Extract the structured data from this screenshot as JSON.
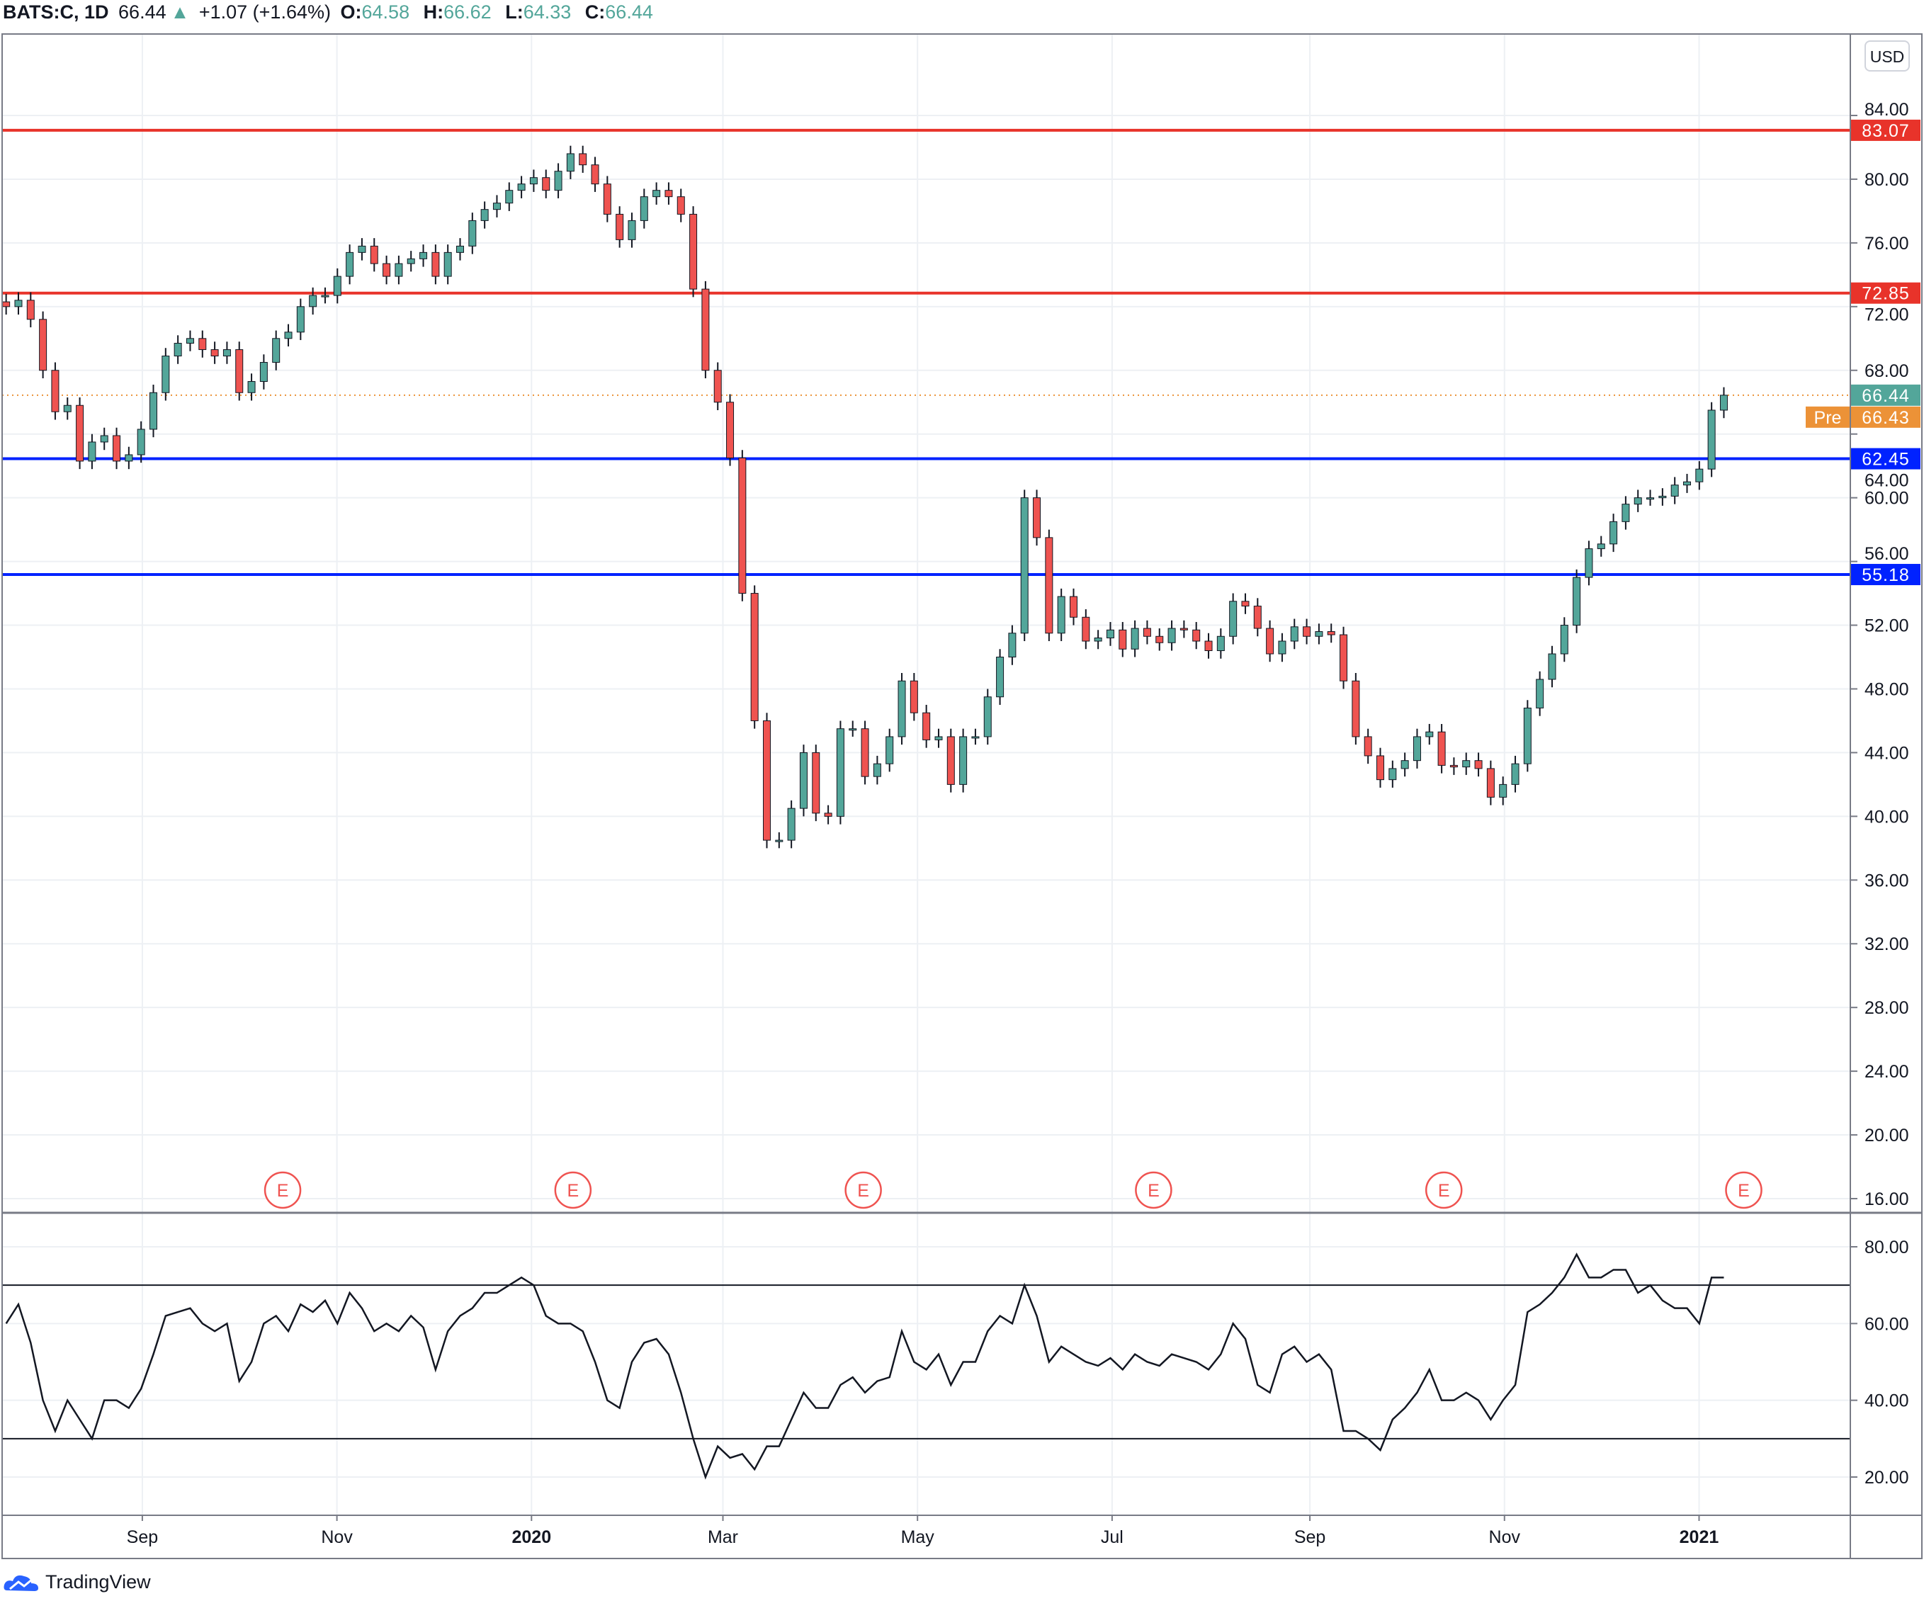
{
  "header": {
    "symbol": "BATS:C, 1D",
    "last": "66.44",
    "change": "+1.07 (+1.64%)",
    "o_label": "O:",
    "o": "64.58",
    "h_label": "H:",
    "h": "66.62",
    "l_label": "L:",
    "l": "64.33",
    "c_label": "C:",
    "c": "66.44",
    "up_color": "#53a69a"
  },
  "currency": "USD",
  "branding": "TradingView",
  "chart_data": {
    "type": "candlestick",
    "up_color": "#53a69a",
    "down_color": "#ef5350",
    "closes": [
      72,
      72.4,
      71.2,
      68,
      65.4,
      65.8,
      62.3,
      63.5,
      63.9,
      62.3,
      62.7,
      64.3,
      66.6,
      68.9,
      69.7,
      70,
      69.3,
      68.9,
      69.3,
      66.6,
      67.3,
      68.5,
      70,
      70.4,
      72,
      72.7,
      72.7,
      73.9,
      75.4,
      75.8,
      74.7,
      73.9,
      74.7,
      75,
      75.4,
      73.9,
      75.4,
      75.8,
      77.4,
      78.1,
      78.5,
      79.3,
      79.7,
      80.1,
      79.3,
      80.5,
      81.6,
      80.9,
      79.7,
      77.8,
      76.2,
      77.4,
      78.9,
      79.3,
      78.9,
      77.8,
      73.1,
      68,
      66,
      62.5,
      54,
      46,
      38.5,
      38.5,
      40.5,
      44,
      40.2,
      40,
      45.5,
      45.5,
      42.5,
      43.3,
      45,
      48.5,
      46.5,
      44.8,
      45,
      42,
      45,
      45,
      47.5,
      50,
      51.5,
      60,
      57.5,
      51.5,
      53.8,
      52.5,
      51,
      51.2,
      51.7,
      50.5,
      51.8,
      51.3,
      50.9,
      51.8,
      51.7,
      51,
      50.4,
      51.3,
      53.5,
      53.2,
      51.8,
      50.2,
      51,
      51.9,
      51.3,
      51.6,
      51.4,
      48.5,
      45,
      43.8,
      42.3,
      43,
      43.5,
      45,
      45.3,
      43.2,
      43.1,
      43.5,
      43,
      41.2,
      42,
      43.3,
      46.8,
      48.6,
      50.2,
      52,
      55,
      56.8,
      57.1,
      58.5,
      59.6,
      60,
      60,
      60.1,
      60.8,
      61,
      61.8,
      65.5,
      66.44
    ],
    "y_ticks": [
      "84.00",
      "80.00",
      "76.00",
      "72.00",
      "68.00",
      "64.00",
      "60.00",
      "56.00",
      "52.00",
      "48.00",
      "44.00",
      "40.00",
      "36.00",
      "32.00",
      "28.00",
      "24.00",
      "20.00",
      "16.00"
    ],
    "ylim": [
      16,
      84
    ],
    "x_ticks": [
      {
        "label": "Sep",
        "date": "2019-09-01",
        "bold": false
      },
      {
        "label": "Nov",
        "date": "2019-11-01",
        "bold": false
      },
      {
        "label": "2020",
        "date": "2020-01-01",
        "bold": true
      },
      {
        "label": "Mar",
        "date": "2020-03-01",
        "bold": false
      },
      {
        "label": "May",
        "date": "2020-05-01",
        "bold": false
      },
      {
        "label": "Jul",
        "date": "2020-07-01",
        "bold": false
      },
      {
        "label": "Sep",
        "date": "2020-09-01",
        "bold": false
      },
      {
        "label": "Nov",
        "date": "2020-11-01",
        "bold": false
      },
      {
        "label": "2021",
        "date": "2021-01-01",
        "bold": true
      }
    ],
    "levels": [
      {
        "value": 83.07,
        "label": "83.07",
        "color": "#e8332a"
      },
      {
        "value": 72.85,
        "label": "72.85",
        "color": "#e8332a"
      },
      {
        "value": 62.45,
        "label": "62.45",
        "color": "#0022ff"
      },
      {
        "value": 55.18,
        "label": "55.18",
        "color": "#0022ff"
      }
    ],
    "last_price": {
      "value": 66.44,
      "label": "66.44",
      "color": "#53a69a"
    },
    "premarket": {
      "value": 66.43,
      "label": "66.43",
      "tag": "Pre",
      "color": "#ec9237"
    },
    "earnings": {
      "label": "E",
      "color": "#ef5350",
      "dates": [
        "2019-10-15",
        "2020-01-14",
        "2020-04-14",
        "2020-07-14",
        "2020-10-13",
        "2021-01-15"
      ]
    },
    "rsi": {
      "values": [
        60,
        65,
        55,
        40,
        32,
        40,
        35,
        30,
        40,
        40,
        38,
        43,
        52,
        62,
        63,
        64,
        60,
        58,
        60,
        45,
        50,
        60,
        62,
        58,
        65,
        63,
        66,
        60,
        68,
        64,
        58,
        60,
        58,
        62,
        59,
        48,
        58,
        62,
        64,
        68,
        68,
        70,
        72,
        70,
        62,
        60,
        60,
        58,
        50,
        40,
        38,
        50,
        55,
        56,
        52,
        42,
        30,
        20,
        28,
        25,
        26,
        22,
        28,
        28,
        35,
        42,
        38,
        38,
        44,
        46,
        42,
        45,
        46,
        58,
        50,
        48,
        52,
        44,
        50,
        50,
        58,
        62,
        60,
        70,
        62,
        50,
        54,
        52,
        50,
        49,
        51,
        48,
        52,
        50,
        49,
        52,
        51,
        50,
        48,
        52,
        60,
        56,
        44,
        42,
        52,
        54,
        50,
        52,
        48,
        32,
        32,
        30,
        27,
        35,
        38,
        42,
        48,
        40,
        40,
        42,
        40,
        35,
        40,
        44,
        63,
        65,
        68,
        72,
        78,
        72,
        72,
        74,
        74,
        68,
        70,
        66,
        64,
        64,
        60,
        72,
        72
      ],
      "ticks": [
        "80.00",
        "60.00",
        "40.00",
        "20.00"
      ],
      "bands": [
        70,
        30
      ],
      "ylim": [
        20,
        80
      ]
    }
  }
}
